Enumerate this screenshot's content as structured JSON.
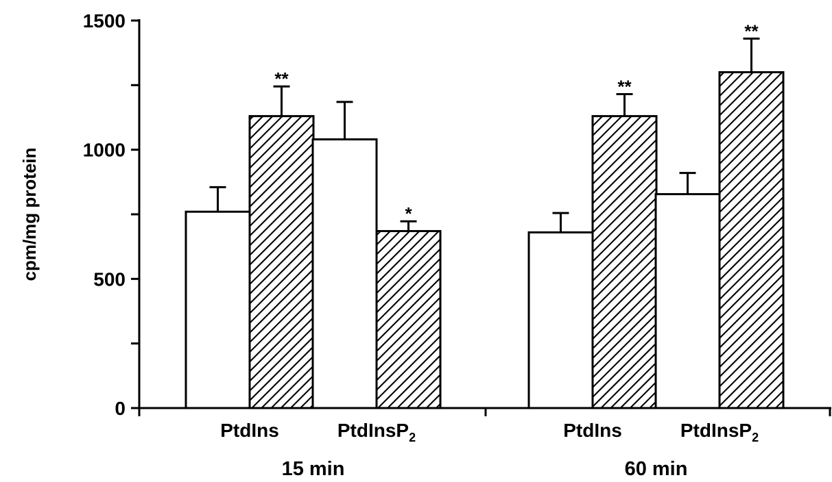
{
  "chart_data": {
    "type": "bar",
    "title": "",
    "ylabel": "cpm/mg protein",
    "xlabel": "",
    "ylim": [
      0,
      1500
    ],
    "yticks": [
      0,
      500,
      1000,
      1500
    ],
    "groups": [
      {
        "label": "15 min",
        "categories": [
          {
            "label": "PtdIns",
            "bars": [
              {
                "fill": "open",
                "value": 760,
                "error": 95,
                "sig": ""
              },
              {
                "fill": "hatched",
                "value": 1130,
                "error": 115,
                "sig": "**"
              }
            ]
          },
          {
            "label": "PtdInsP",
            "subscript": "2",
            "bars": [
              {
                "fill": "open",
                "value": 1040,
                "error": 145,
                "sig": ""
              },
              {
                "fill": "hatched",
                "value": 685,
                "error": 38,
                "sig": "*"
              }
            ]
          }
        ]
      },
      {
        "label": "60 min",
        "categories": [
          {
            "label": "PtdIns",
            "bars": [
              {
                "fill": "open",
                "value": 680,
                "error": 75,
                "sig": ""
              },
              {
                "fill": "hatched",
                "value": 1130,
                "error": 85,
                "sig": "**"
              }
            ]
          },
          {
            "label": "PtdInsP",
            "subscript": "2",
            "bars": [
              {
                "fill": "open",
                "value": 828,
                "error": 82,
                "sig": ""
              },
              {
                "fill": "hatched",
                "value": 1300,
                "error": 130,
                "sig": "**"
              }
            ]
          }
        ]
      }
    ],
    "grid": false,
    "legend": "none",
    "colors": {
      "open": "#ffffff",
      "hatched": "#000000",
      "stroke": "#000000"
    }
  }
}
